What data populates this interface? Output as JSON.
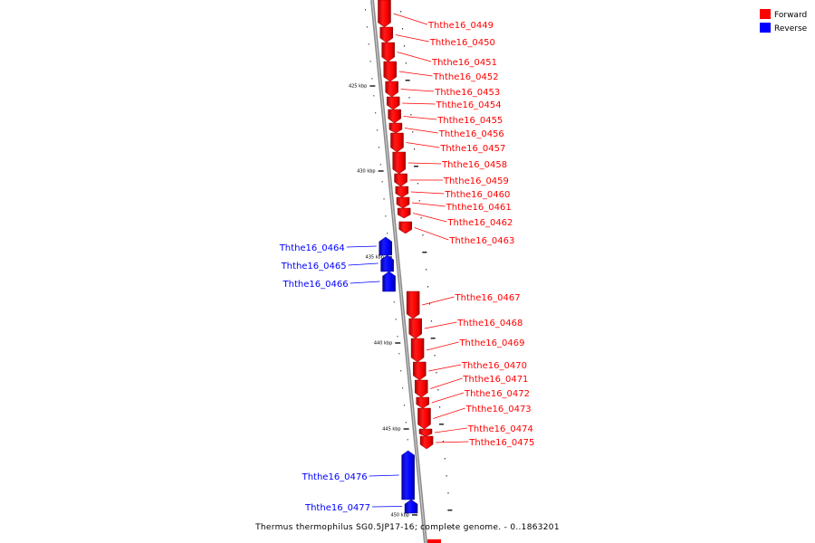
{
  "colors": {
    "forward": "#ff0000",
    "reverse": "#0000ff",
    "backbone": "#808080"
  },
  "legend": [
    {
      "label": "Forward",
      "color": "#ff0000"
    },
    {
      "label": "Reverse",
      "color": "#0000ff"
    }
  ],
  "caption": "Thermus thermophilus SG0.5JP17-16, complete genome. - 0..1863201",
  "kbp_ticks": [
    "425 kbp",
    "430 kbp",
    "435 kbp",
    "440 kbp",
    "445 kbp",
    "450 kbp"
  ],
  "genes": [
    {
      "name": "Ththe16_0449",
      "strand": "forward"
    },
    {
      "name": "Ththe16_0450",
      "strand": "forward"
    },
    {
      "name": "Ththe16_0451",
      "strand": "forward"
    },
    {
      "name": "Ththe16_0452",
      "strand": "forward"
    },
    {
      "name": "Ththe16_0453",
      "strand": "forward"
    },
    {
      "name": "Ththe16_0454",
      "strand": "forward"
    },
    {
      "name": "Ththe16_0455",
      "strand": "forward"
    },
    {
      "name": "Ththe16_0456",
      "strand": "forward"
    },
    {
      "name": "Ththe16_0457",
      "strand": "forward"
    },
    {
      "name": "Ththe16_0458",
      "strand": "forward"
    },
    {
      "name": "Ththe16_0459",
      "strand": "forward"
    },
    {
      "name": "Ththe16_0460",
      "strand": "forward"
    },
    {
      "name": "Ththe16_0461",
      "strand": "forward"
    },
    {
      "name": "Ththe16_0462",
      "strand": "forward"
    },
    {
      "name": "Ththe16_0463",
      "strand": "forward"
    },
    {
      "name": "Ththe16_0464",
      "strand": "reverse"
    },
    {
      "name": "Ththe16_0465",
      "strand": "reverse"
    },
    {
      "name": "Ththe16_0466",
      "strand": "reverse"
    },
    {
      "name": "Ththe16_0467",
      "strand": "forward"
    },
    {
      "name": "Ththe16_0468",
      "strand": "forward"
    },
    {
      "name": "Ththe16_0469",
      "strand": "forward"
    },
    {
      "name": "Ththe16_0470",
      "strand": "forward"
    },
    {
      "name": "Ththe16_0471",
      "strand": "forward"
    },
    {
      "name": "Ththe16_0472",
      "strand": "forward"
    },
    {
      "name": "Ththe16_0473",
      "strand": "forward"
    },
    {
      "name": "Ththe16_0474",
      "strand": "forward"
    },
    {
      "name": "Ththe16_0475",
      "strand": "forward"
    },
    {
      "name": "Ththe16_0476",
      "strand": "reverse"
    },
    {
      "name": "Ththe16_0477",
      "strand": "reverse"
    }
  ]
}
